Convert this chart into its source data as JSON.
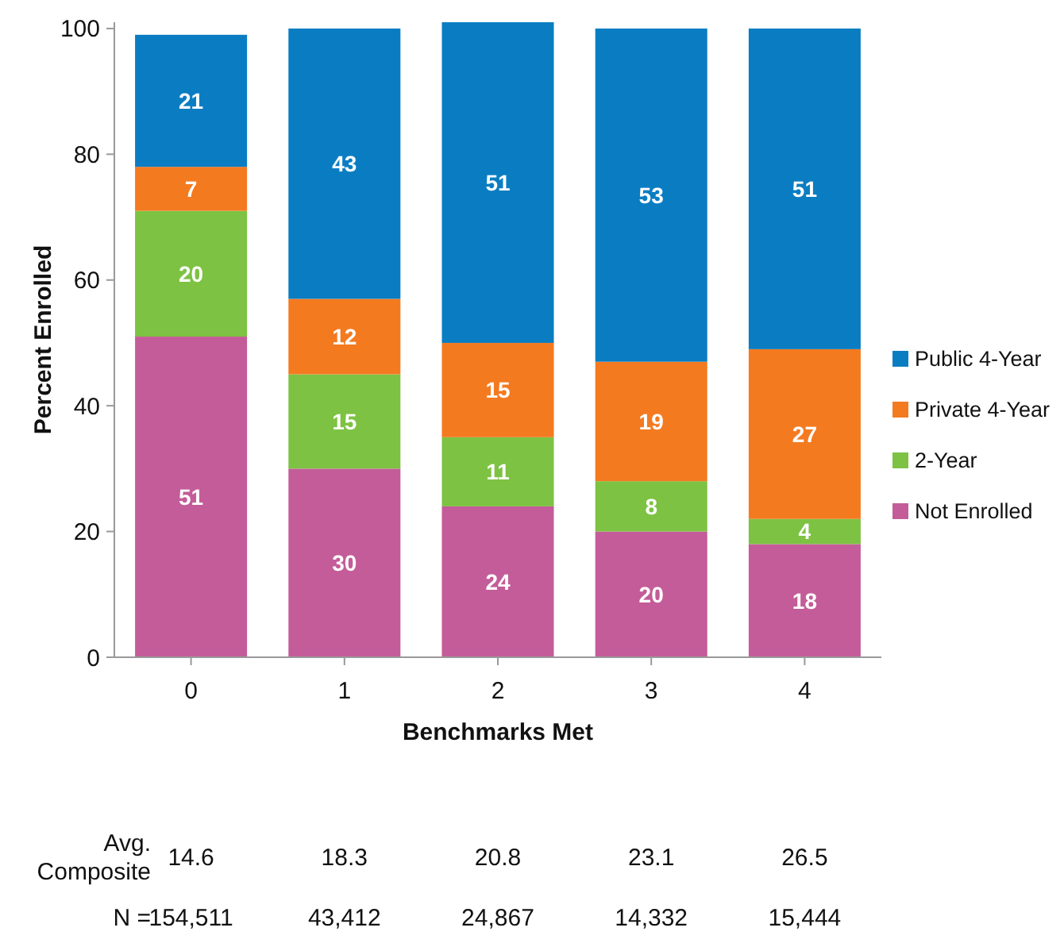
{
  "chart_data": {
    "type": "bar",
    "stacked": true,
    "xlabel": "Benchmarks Met",
    "ylabel": "Percent Enrolled",
    "categories": [
      "0",
      "1",
      "2",
      "3",
      "4"
    ],
    "series": [
      {
        "name": "Not Enrolled",
        "color": "#c45c99",
        "values": [
          51,
          30,
          24,
          20,
          18
        ]
      },
      {
        "name": "2-Year",
        "color": "#7dc242",
        "values": [
          20,
          15,
          11,
          8,
          4
        ]
      },
      {
        "name": "Private 4-Year",
        "color": "#f47a20",
        "values": [
          7,
          12,
          15,
          19,
          27
        ]
      },
      {
        "name": "Public 4-Year",
        "color": "#0a7dc2",
        "values": [
          21,
          43,
          51,
          53,
          51
        ]
      }
    ],
    "ylim": [
      0,
      101
    ],
    "yticks": [
      0,
      20,
      40,
      60,
      80,
      100
    ],
    "data_labels": true,
    "legend": "right",
    "grid": false,
    "annotations": [
      "Avg. Composite",
      "14.6",
      "18.3",
      "20.8",
      "23.1",
      "26.5",
      "N =",
      "154,511",
      "43,412",
      "24,867",
      "14,332",
      "15,444"
    ]
  }
}
